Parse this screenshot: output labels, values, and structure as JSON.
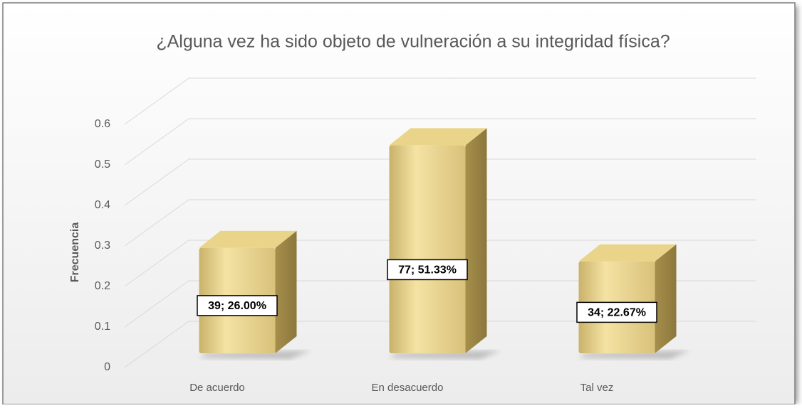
{
  "chart_data": {
    "type": "bar3d",
    "title": "¿Alguna vez ha sido objeto de vulneración a su integridad física?",
    "y_label": "Frecuencia",
    "categories": [
      "De acuerdo",
      "En desacuerdo",
      "Tal vez"
    ],
    "values": [
      0.26,
      0.5133,
      0.2267
    ],
    "value_labels": [
      "39; 26.00%",
      "77; 51.33%",
      "34; 22.67%"
    ],
    "color": "#e6cf86",
    "ylim": [
      0,
      0.6
    ],
    "yticks": [
      0,
      0.1,
      0.2,
      0.3,
      0.4,
      0.5,
      0.6
    ],
    "grid": true
  }
}
